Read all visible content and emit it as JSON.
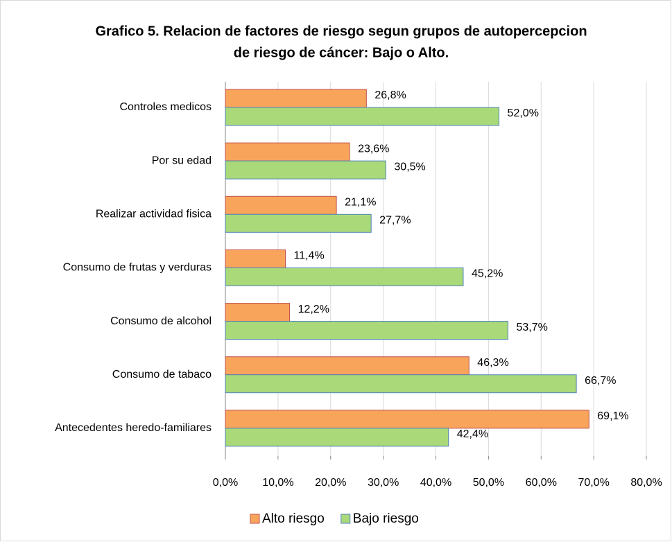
{
  "chart_data": {
    "type": "hbar",
    "title": [
      "Grafico 5. Relacion de factores de riesgo segun grupos de autopercepcion",
      "de riesgo de cáncer: Bajo o Alto."
    ],
    "categories": [
      "Controles medicos",
      "Por su edad",
      "Realizar actividad fisica",
      "Consumo de frutas y verduras",
      "Consumo de alcohol",
      "Consumo de tabaco",
      "Antecedentes  heredo-familiares"
    ],
    "series": [
      {
        "name": "Alto riesgo",
        "color": "#F8A55B",
        "border": "#C0504D",
        "values": [
          26.8,
          23.6,
          21.1,
          11.4,
          12.2,
          46.3,
          69.1
        ],
        "value_labels": [
          "26,8%",
          "23,6%",
          "21,1%",
          "11,4%",
          "12,2%",
          "46,3%",
          "69,1%"
        ]
      },
      {
        "name": "Bajo riesgo",
        "color": "#A9D979",
        "border": "#4F81BD",
        "values": [
          52.0,
          30.5,
          27.7,
          45.2,
          53.7,
          66.7,
          42.4
        ],
        "value_labels": [
          "52,0%",
          "30,5%",
          "27,7%",
          "45,2%",
          "53,7%",
          "66,7%",
          "42,4%"
        ]
      }
    ],
    "xlim": [
      0,
      80
    ],
    "xticks": [
      {
        "value": 0,
        "label": "0,0%"
      },
      {
        "value": 10,
        "label": "10,0%"
      },
      {
        "value": 20,
        "label": "20,0%"
      },
      {
        "value": 30,
        "label": "30,0%"
      },
      {
        "value": 40,
        "label": "40,0%"
      },
      {
        "value": 50,
        "label": "50,0%"
      },
      {
        "value": 60,
        "label": "60,0%"
      },
      {
        "value": 70,
        "label": "70,0%"
      },
      {
        "value": 80,
        "label": "80,0%"
      }
    ],
    "grid": true,
    "legend": "bottom"
  }
}
